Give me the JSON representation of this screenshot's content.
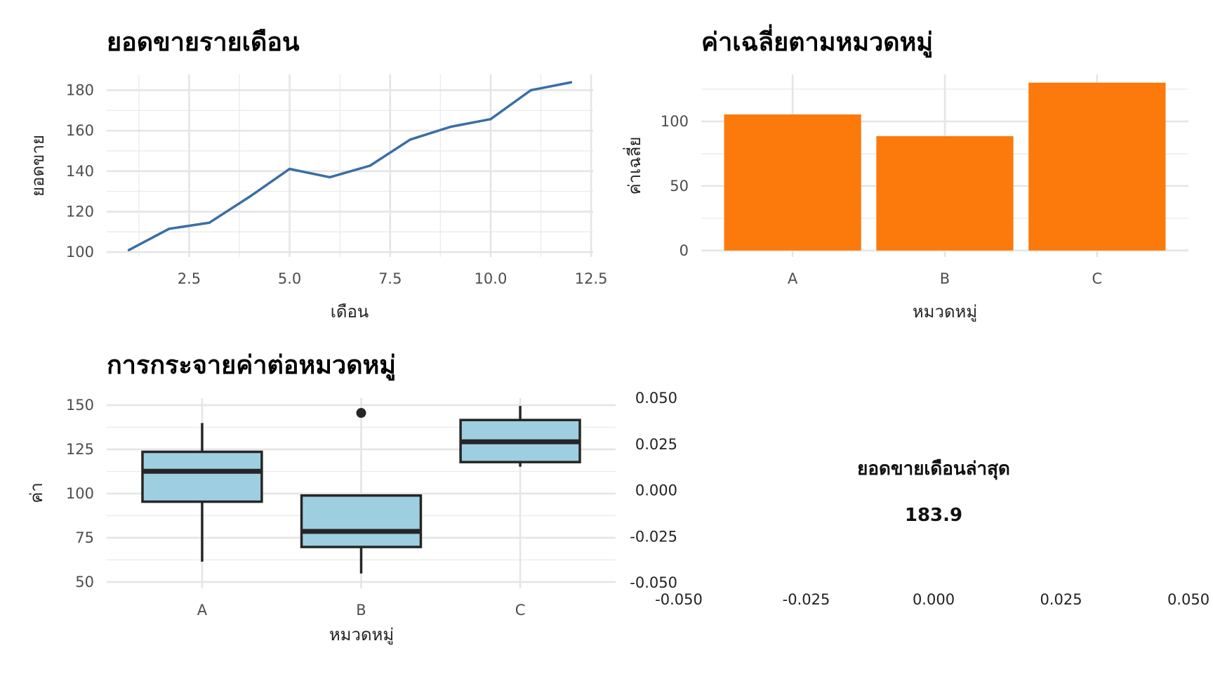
{
  "chart_data": [
    {
      "type": "line",
      "title": "ยอดขายรายเดือน",
      "xlabel": "เดือน",
      "ylabel": "ยอดขาย",
      "x": [
        1,
        2,
        3,
        4,
        5,
        6,
        7,
        8,
        9,
        10,
        11,
        12
      ],
      "values": [
        101,
        111.5,
        114.5,
        127.3,
        141.1,
        137,
        142.7,
        155.6,
        161.9,
        165.7,
        180,
        183.9
      ],
      "xlim": [
        0.45,
        12.55
      ],
      "ylim": [
        97.6,
        187.8
      ],
      "xticks": [
        2.5,
        5.0,
        7.5,
        10.0,
        12.5
      ],
      "xtick_labels": [
        "2.5",
        "5.0",
        "7.5",
        "10.0",
        "12.5"
      ],
      "yticks": [
        100,
        120,
        140,
        160,
        180
      ],
      "ytick_labels": [
        "100",
        "120",
        "140",
        "160",
        "180"
      ],
      "grid": true,
      "color": "#3a6ea5"
    },
    {
      "type": "bar",
      "title": "ค่าเฉลี่ยตามหมวดหมู่",
      "xlabel": "หมวดหมู่",
      "ylabel": "ค่าเฉลี่ย",
      "categories": [
        "A",
        "B",
        "C"
      ],
      "values": [
        105.4,
        88.6,
        130
      ],
      "ylim": [
        -5,
        136.4
      ],
      "yticks": [
        0,
        50,
        100
      ],
      "ytick_labels": [
        "0",
        "50",
        "100"
      ],
      "grid": true,
      "color": "#fc790b"
    },
    {
      "type": "box",
      "title": "การกระจายค่าต่อหมวดหมู่",
      "xlabel": "หมวดหมู่",
      "ylabel": "ค่า",
      "categories": [
        "A",
        "B",
        "C"
      ],
      "boxes": [
        {
          "whisker_low": 61.5,
          "q1": 95.4,
          "median": 112.6,
          "q3": 123.6,
          "whisker_high": 139.9,
          "outliers": []
        },
        {
          "whisker_low": 54.8,
          "q1": 69.8,
          "median": 78.6,
          "q3": 98.9,
          "whisker_high": 98.9,
          "outliers": [
            145.6
          ]
        },
        {
          "whisker_low": 115.2,
          "q1": 117.8,
          "median": 129.3,
          "q3": 141.6,
          "whisker_high": 149.6,
          "outliers": []
        }
      ],
      "ylim": [
        46.4,
        154
      ],
      "yticks": [
        50,
        75,
        100,
        125,
        150
      ],
      "ytick_labels": [
        "50",
        "75",
        "100",
        "125",
        "150"
      ],
      "grid": true,
      "fill": "#9ecfe0",
      "stroke": "#262626"
    },
    {
      "type": "text",
      "annotation_label": "ยอดขายเดือนล่าสุด",
      "annotation_value": "183.9",
      "xlim": [
        -0.05,
        0.05
      ],
      "ylim": [
        -0.05,
        0.05
      ],
      "xticks": [
        -0.05,
        -0.025,
        0,
        0.025,
        0.05
      ],
      "xtick_labels": [
        "-0.050",
        "-0.025",
        "0.000",
        "0.025",
        "0.050"
      ],
      "yticks": [
        -0.05,
        -0.025,
        0,
        0.025,
        0.05
      ],
      "ytick_labels": [
        "-0.050",
        "-0.025",
        "0.000",
        "0.025",
        "0.050"
      ],
      "grid": false
    }
  ]
}
